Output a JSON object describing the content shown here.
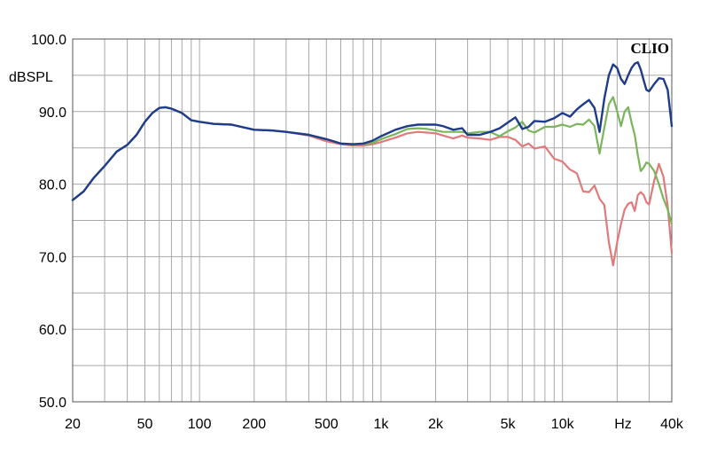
{
  "chart_data": {
    "type": "line",
    "title": "",
    "brand": "CLIO",
    "ylabel": "dBSPL",
    "xlabel": "Hz",
    "x_scale": "log",
    "xlim": [
      20,
      40000
    ],
    "ylim": [
      50,
      100
    ],
    "grid": true,
    "x_ticks": [
      {
        "value": 20,
        "label": "20"
      },
      {
        "value": 50,
        "label": "50"
      },
      {
        "value": 100,
        "label": "100"
      },
      {
        "value": 200,
        "label": "200"
      },
      {
        "value": 500,
        "label": "500"
      },
      {
        "value": 1000,
        "label": "1k"
      },
      {
        "value": 2000,
        "label": "2k"
      },
      {
        "value": 5000,
        "label": "5k"
      },
      {
        "value": 10000,
        "label": "10k"
      },
      {
        "value": 40000,
        "label": "40k"
      }
    ],
    "y_ticks": [
      {
        "value": 100,
        "label": "100.0"
      },
      {
        "value": 90,
        "label": "90.0"
      },
      {
        "value": 80,
        "label": "80.0"
      },
      {
        "value": 70,
        "label": "70.0"
      },
      {
        "value": 60,
        "label": "60.0"
      },
      {
        "value": 50,
        "label": "50.0"
      }
    ],
    "series": [
      {
        "color": "#e07a7a",
        "x": [
          20,
          23,
          26,
          30,
          35,
          40,
          45,
          50,
          55,
          60,
          65,
          70,
          80,
          90,
          100,
          120,
          150,
          200,
          250,
          300,
          400,
          500,
          600,
          700,
          800,
          900,
          1000,
          1200,
          1400,
          1600,
          1800,
          2000,
          2200,
          2500,
          2800,
          3000,
          3500,
          4000,
          4500,
          5000,
          5500,
          6000,
          6500,
          7000,
          8000,
          9000,
          10000,
          11000,
          12000,
          13000,
          14000,
          15000,
          16000,
          17000,
          18000,
          19000,
          20000,
          21000,
          22000,
          23000,
          24000,
          25000,
          26000,
          27000,
          28000,
          29000,
          30000,
          32000,
          34000,
          36000,
          38000,
          40000
        ],
        "y": [
          77.8,
          79,
          80.8,
          82.5,
          84.5,
          85.4,
          86.8,
          88.6,
          89.8,
          90.5,
          90.6,
          90.4,
          89.8,
          88.8,
          88.6,
          88.3,
          88.2,
          87.5,
          87.4,
          87.2,
          86.7,
          85.9,
          85.5,
          85.3,
          85.3,
          85.5,
          85.8,
          86.4,
          87,
          87.2,
          87.1,
          87,
          86.7,
          86.3,
          86.7,
          86.4,
          86.3,
          86.1,
          86.5,
          86.5,
          86.1,
          85.2,
          85.6,
          84.9,
          85.2,
          83.5,
          83.1,
          82,
          81.5,
          79,
          78.9,
          79.8,
          78,
          77.1,
          72,
          68.8,
          72,
          74.5,
          76.5,
          77.3,
          77.5,
          76.3,
          78.5,
          78.9,
          78.5,
          77.5,
          77.2,
          80.5,
          82.8,
          81,
          77,
          70.5
        ]
      },
      {
        "color": "#7ab55c",
        "x": [
          20,
          23,
          26,
          30,
          35,
          40,
          45,
          50,
          55,
          60,
          65,
          70,
          80,
          90,
          100,
          120,
          150,
          200,
          250,
          300,
          400,
          500,
          600,
          700,
          800,
          900,
          1000,
          1200,
          1400,
          1600,
          1800,
          2000,
          2200,
          2500,
          2800,
          3000,
          3500,
          4000,
          4500,
          5000,
          5500,
          6000,
          6500,
          7000,
          8000,
          9000,
          10000,
          11000,
          12000,
          13000,
          14000,
          15000,
          16000,
          17000,
          18000,
          19000,
          20000,
          21000,
          22000,
          23000,
          24000,
          25000,
          26000,
          27000,
          28000,
          29000,
          30000,
          32000,
          34000,
          36000,
          38000,
          40000
        ],
        "y": [
          77.8,
          79,
          80.8,
          82.5,
          84.5,
          85.4,
          86.8,
          88.6,
          89.8,
          90.5,
          90.6,
          90.4,
          89.8,
          88.8,
          88.6,
          88.3,
          88.2,
          87.5,
          87.4,
          87.2,
          86.8,
          86.2,
          85.6,
          85.4,
          85.5,
          85.7,
          86.2,
          86.9,
          87.6,
          87.7,
          87.6,
          87.4,
          87.2,
          87.2,
          87.2,
          87,
          87.2,
          87.2,
          86.6,
          87.3,
          87.8,
          88.6,
          87.4,
          87.1,
          87.9,
          87.9,
          88.2,
          87.9,
          88.3,
          88.2,
          88.9,
          88,
          84.2,
          87.8,
          91,
          92,
          90,
          88,
          90,
          90.6,
          88.5,
          86.8,
          84,
          81.8,
          82.3,
          83,
          82.8,
          81.8,
          80,
          78,
          76.5,
          74.5
        ]
      },
      {
        "color": "#1f3c8a",
        "x": [
          20,
          23,
          26,
          30,
          35,
          40,
          45,
          50,
          55,
          60,
          65,
          70,
          80,
          90,
          100,
          120,
          150,
          200,
          250,
          300,
          400,
          500,
          600,
          700,
          800,
          900,
          1000,
          1200,
          1400,
          1600,
          1800,
          2000,
          2200,
          2500,
          2800,
          3000,
          3500,
          4000,
          4500,
          5000,
          5500,
          6000,
          6500,
          7000,
          8000,
          9000,
          10000,
          11000,
          12000,
          13000,
          14000,
          15000,
          16000,
          17000,
          18000,
          19000,
          20000,
          21000,
          22000,
          23000,
          24000,
          25000,
          26000,
          27000,
          28000,
          29000,
          30000,
          32000,
          34000,
          36000,
          38000,
          40000
        ],
        "y": [
          77.8,
          79,
          80.8,
          82.5,
          84.5,
          85.4,
          86.8,
          88.6,
          89.8,
          90.5,
          90.6,
          90.4,
          89.8,
          88.8,
          88.6,
          88.3,
          88.2,
          87.5,
          87.4,
          87.2,
          86.8,
          86.2,
          85.6,
          85.5,
          85.6,
          86,
          86.6,
          87.5,
          88,
          88.2,
          88.2,
          88.2,
          88,
          87.5,
          87.7,
          86.8,
          86.8,
          87.2,
          87.7,
          88.5,
          89.2,
          87.6,
          87.9,
          88.7,
          88.6,
          89.1,
          89.8,
          89.3,
          90.3,
          91,
          91.6,
          90.5,
          87.2,
          91.8,
          95,
          96.5,
          96,
          94.5,
          93.8,
          95,
          96,
          96.6,
          96.8,
          95.8,
          94.3,
          93,
          92.8,
          93.8,
          94.6,
          94.5,
          93,
          88
        ]
      }
    ]
  }
}
